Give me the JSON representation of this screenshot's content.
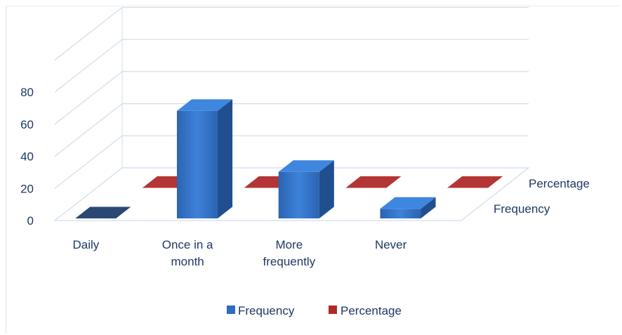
{
  "chart_data": {
    "type": "bar",
    "style": "3d-clustered-column",
    "categories": [
      "Daily",
      "Once in a month",
      "More frequently",
      "Never"
    ],
    "category_lines": [
      [
        "Daily"
      ],
      [
        "Once in a",
        "month"
      ],
      [
        "More",
        "frequently"
      ],
      [
        "Never"
      ]
    ],
    "series": [
      {
        "name": "Frequency",
        "values": [
          0,
          67,
          29,
          6
        ],
        "color": "#2e6dbf"
      },
      {
        "name": "Percentage",
        "values": [
          0,
          0,
          0,
          0
        ],
        "color": "#b02a2a"
      }
    ],
    "yticks": [
      0,
      20,
      40,
      60,
      80
    ],
    "ylim": [
      0,
      100
    ],
    "grid": true,
    "legend_position": "bottom",
    "depth_axis_labels": [
      "Percentage",
      "Frequency"
    ]
  },
  "colors": {
    "text": "#1f3864",
    "grid": "#d0dcec",
    "frequency": "#2e6dbf",
    "percentage": "#b02a2a"
  }
}
